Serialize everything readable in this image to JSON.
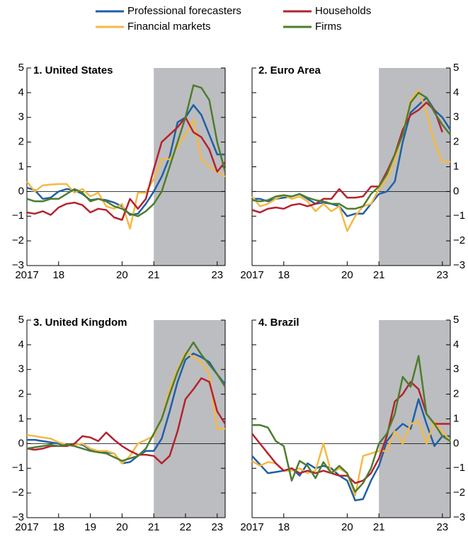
{
  "chart_data": [
    {
      "type": "line",
      "title": "1. United States",
      "xlim": [
        2017,
        2023.25
      ],
      "ylim": [
        -3,
        5
      ],
      "x": [
        2017,
        2017.25,
        2017.5,
        2017.75,
        2018,
        2018.25,
        2018.5,
        2018.75,
        2019,
        2019.25,
        2019.5,
        2019.75,
        2020,
        2020.25,
        2020.5,
        2020.75,
        2021,
        2021.25,
        2021.5,
        2021.75,
        2022,
        2022.25,
        2022.5,
        2022.75,
        2023,
        2023.25
      ],
      "xticks": [
        2017,
        {
          "value": 2018,
          "label": "18"
        },
        {
          "value": 2020,
          "label": "20"
        },
        {
          "value": 2021,
          "label": "21"
        },
        {
          "value": 2023,
          "label": "23"
        }
      ],
      "yticks": [
        {
          "value": -3,
          "label": "−3"
        },
        {
          "value": -2,
          "label": "−2"
        },
        {
          "value": -1,
          "label": "−1"
        },
        0,
        1,
        2,
        3,
        4,
        5
      ],
      "shaded_from": 2021,
      "label_side": "left",
      "series": [
        {
          "name": "Professional forecasters",
          "color": "#1f5fa8",
          "values": [
            0.15,
            0.05,
            -0.3,
            -0.25,
            0.0,
            0.1,
            0.05,
            -0.1,
            -0.35,
            -0.3,
            -0.35,
            -0.45,
            -0.6,
            -0.95,
            -0.9,
            -0.5,
            0.0,
            0.6,
            1.4,
            2.8,
            3.0,
            3.5,
            3.1,
            2.3,
            1.5,
            1.5
          ]
        },
        {
          "name": "Financial markets",
          "color": "#f5b942",
          "values": [
            0.4,
            0.0,
            0.25,
            0.28,
            0.3,
            0.3,
            -0.05,
            0.1,
            -0.2,
            -0.05,
            -0.6,
            -0.7,
            -0.5,
            -1.5,
            -0.05,
            -0.05,
            0.5,
            1.3,
            1.3,
            1.8,
            2.3,
            2.9,
            1.3,
            1.0,
            0.8,
            0.6
          ]
        },
        {
          "name": "Households",
          "color": "#b5222f",
          "values": [
            -0.85,
            -0.9,
            -0.8,
            -0.95,
            -0.65,
            -0.5,
            -0.45,
            -0.55,
            -0.85,
            -0.7,
            -0.75,
            -1.05,
            -1.15,
            -0.3,
            -0.7,
            -0.3,
            0.9,
            2.0,
            2.3,
            2.6,
            3.0,
            2.4,
            2.2,
            1.7,
            0.8,
            1.2
          ]
        },
        {
          "name": "Firms",
          "color": "#4c7d2e",
          "values": [
            -0.3,
            -0.4,
            -0.4,
            -0.3,
            -0.3,
            -0.1,
            0.1,
            -0.05,
            -0.4,
            -0.3,
            -0.4,
            -0.6,
            -0.7,
            -0.9,
            -1.0,
            -0.8,
            -0.5,
            0.0,
            1.0,
            2.0,
            3.0,
            4.3,
            4.2,
            3.7,
            2.0,
            0.8
          ]
        }
      ]
    },
    {
      "type": "line",
      "title": "2. Euro Area",
      "xlim": [
        2017,
        2023.25
      ],
      "ylim": [
        -3,
        5
      ],
      "x": [
        2017,
        2017.25,
        2017.5,
        2017.75,
        2018,
        2018.25,
        2018.5,
        2018.75,
        2019,
        2019.25,
        2019.5,
        2019.75,
        2020,
        2020.25,
        2020.5,
        2020.75,
        2021,
        2021.25,
        2021.5,
        2021.75,
        2022,
        2022.25,
        2022.5,
        2022.75,
        2023,
        2023.25
      ],
      "xticks": [
        2017,
        {
          "value": 2018,
          "label": "18"
        },
        {
          "value": 2020,
          "label": "20"
        },
        {
          "value": 2021,
          "label": "21"
        },
        {
          "value": 2023,
          "label": "23"
        }
      ],
      "yticks": [
        {
          "value": -3,
          "label": "−3"
        },
        {
          "value": -2,
          "label": "−2"
        },
        {
          "value": -1,
          "label": "−1"
        },
        0,
        1,
        2,
        3,
        4,
        5
      ],
      "shaded_from": 2021,
      "label_side": "right",
      "series": [
        {
          "color": "#1f5fa8",
          "values": [
            -0.3,
            -0.3,
            -0.4,
            -0.3,
            -0.25,
            -0.2,
            -0.1,
            -0.3,
            -0.5,
            -0.45,
            -0.5,
            -0.6,
            -1.0,
            -0.9,
            -0.9,
            -0.5,
            -0.1,
            0.0,
            0.4,
            2.0,
            3.2,
            3.5,
            3.8,
            3.3,
            3.0,
            2.5
          ]
        },
        {
          "color": "#f5b942",
          "values": [
            -0.2,
            -0.6,
            -0.5,
            -0.3,
            -0.15,
            -0.3,
            -0.2,
            -0.4,
            -0.8,
            -0.5,
            -0.8,
            -0.6,
            -1.6,
            -1.0,
            -0.6,
            -0.5,
            0.1,
            0.5,
            1.2,
            2.4,
            3.7,
            4.1,
            3.2,
            2.0,
            1.2,
            1.2
          ]
        },
        {
          "color": "#b5222f",
          "values": [
            -0.75,
            -0.85,
            -0.7,
            -0.65,
            -0.7,
            -0.55,
            -0.5,
            -0.6,
            -0.5,
            -0.3,
            -0.3,
            0.1,
            -0.25,
            -0.25,
            -0.2,
            0.2,
            0.2,
            0.8,
            1.5,
            2.5,
            3.1,
            3.3,
            3.6,
            3.3,
            2.4,
            null
          ]
        },
        {
          "color": "#4c7d2e",
          "values": [
            -0.35,
            -0.4,
            -0.35,
            -0.2,
            -0.15,
            -0.2,
            -0.1,
            -0.25,
            -0.35,
            -0.4,
            -0.5,
            -0.5,
            -0.7,
            -0.7,
            -0.6,
            -0.1,
            0.2,
            0.7,
            1.5,
            2.3,
            3.6,
            4.0,
            3.8,
            3.2,
            2.7,
            2.3
          ]
        }
      ]
    },
    {
      "type": "line",
      "title": "3. United Kingdom",
      "xlim": [
        2017,
        2023.25
      ],
      "ylim": [
        -3,
        5
      ],
      "x": [
        2017,
        2017.25,
        2017.5,
        2017.75,
        2018,
        2018.25,
        2018.5,
        2018.75,
        2019,
        2019.25,
        2019.5,
        2019.75,
        2020,
        2020.25,
        2020.5,
        2020.75,
        2021,
        2021.25,
        2021.5,
        2021.75,
        2022,
        2022.25,
        2022.5,
        2022.75,
        2023,
        2023.25
      ],
      "xticks": [
        2017,
        {
          "value": 2018,
          "label": "18"
        },
        {
          "value": 2019,
          "label": "19"
        },
        {
          "value": 2020,
          "label": "20"
        },
        {
          "value": 2021,
          "label": "21"
        },
        {
          "value": 2022,
          "label": "22"
        },
        {
          "value": 2023,
          "label": "23"
        }
      ],
      "yticks": [
        {
          "value": -3,
          "label": "−3"
        },
        {
          "value": -2,
          "label": "−2"
        },
        {
          "value": -1,
          "label": "−1"
        },
        0,
        1,
        2,
        3,
        4,
        5
      ],
      "shaded_from": 2021,
      "label_side": "left",
      "series": [
        {
          "color": "#1f5fa8",
          "values": [
            0.15,
            0.15,
            0.1,
            0.05,
            0.0,
            -0.1,
            0.0,
            -0.05,
            -0.25,
            -0.35,
            -0.35,
            -0.4,
            -0.8,
            -0.75,
            -0.5,
            -0.3,
            -0.3,
            0.2,
            1.3,
            2.5,
            3.4,
            3.65,
            3.5,
            3.3,
            2.8,
            2.4
          ]
        },
        {
          "color": "#f5b942",
          "values": [
            0.35,
            0.3,
            0.25,
            0.2,
            0.05,
            -0.05,
            -0.05,
            0.0,
            -0.2,
            -0.3,
            -0.3,
            -0.4,
            -0.8,
            -0.5,
            0.0,
            0.15,
            0.3,
            1.0,
            2.2,
            3.0,
            3.7,
            3.5,
            3.3,
            2.8,
            0.6,
            0.6
          ]
        },
        {
          "color": "#b5222f",
          "values": [
            -0.2,
            -0.25,
            -0.2,
            -0.1,
            -0.1,
            -0.1,
            0.0,
            0.3,
            0.25,
            0.1,
            0.45,
            0.15,
            -0.1,
            -0.3,
            -0.45,
            -0.45,
            -0.5,
            -0.8,
            -0.5,
            0.5,
            1.8,
            2.2,
            2.65,
            2.5,
            1.3,
            0.8
          ]
        },
        {
          "color": "#4c7d2e",
          "values": [
            -0.2,
            -0.15,
            -0.1,
            -0.05,
            -0.1,
            -0.05,
            -0.1,
            -0.2,
            -0.3,
            -0.35,
            -0.4,
            -0.55,
            -0.7,
            -0.6,
            -0.5,
            -0.2,
            0.4,
            1.0,
            2.0,
            2.9,
            3.6,
            4.1,
            3.6,
            3.2,
            2.8,
            2.3
          ]
        }
      ]
    },
    {
      "type": "line",
      "title": "4. Brazil",
      "xlim": [
        2017,
        2023.25
      ],
      "ylim": [
        -3,
        5
      ],
      "x": [
        2017,
        2017.25,
        2017.5,
        2017.75,
        2018,
        2018.25,
        2018.5,
        2018.75,
        2019,
        2019.25,
        2019.5,
        2019.75,
        2020,
        2020.25,
        2020.5,
        2020.75,
        2021,
        2021.25,
        2021.5,
        2021.75,
        2022,
        2022.25,
        2022.5,
        2022.75,
        2023,
        2023.25
      ],
      "xticks": [
        2017,
        {
          "value": 2018,
          "label": "18"
        },
        {
          "value": 2020,
          "label": "20"
        },
        {
          "value": 2021,
          "label": "21"
        },
        {
          "value": 2023,
          "label": "23"
        }
      ],
      "yticks": [
        {
          "value": -3,
          "label": "−3"
        },
        {
          "value": -2,
          "label": "−2"
        },
        {
          "value": -1,
          "label": "−1"
        },
        0,
        1,
        2,
        3,
        4,
        5
      ],
      "shaded_from": 2021,
      "label_side": "right",
      "series": [
        {
          "color": "#1f5fa8",
          "values": [
            -0.5,
            -0.85,
            -1.2,
            -1.15,
            -1.1,
            -1.0,
            -1.3,
            -0.8,
            -1.0,
            -0.9,
            -1.0,
            -1.3,
            -1.5,
            -2.3,
            -2.25,
            -1.5,
            -0.9,
            0.1,
            0.5,
            0.8,
            0.6,
            1.8,
            0.8,
            -0.1,
            0.3,
            0.3
          ]
        },
        {
          "color": "#f5b942",
          "values": [
            -0.7,
            -0.9,
            -0.75,
            -0.8,
            -1.1,
            -1.1,
            -1.0,
            -1.2,
            -1.1,
            0.0,
            -1.2,
            -1.0,
            -1.2,
            -2.1,
            -0.5,
            -0.4,
            -0.3,
            -0.3,
            0.5,
            0.0,
            0.8,
            0.9,
            0.0,
            0.9,
            0.5,
            0.1
          ]
        },
        {
          "color": "#b5222f",
          "values": [
            0.4,
            0.0,
            -0.4,
            -0.8,
            -1.1,
            -1.0,
            -1.2,
            -1.1,
            -1.2,
            -1.1,
            -1.2,
            -1.3,
            -1.3,
            -1.6,
            -1.5,
            -1.2,
            -0.6,
            0.3,
            1.7,
            2.0,
            2.5,
            2.2,
            1.2,
            0.8,
            0.8,
            0.8
          ]
        },
        {
          "color": "#4c7d2e",
          "values": [
            0.75,
            0.75,
            0.65,
            0.1,
            -0.1,
            -1.5,
            -0.7,
            -0.9,
            -1.4,
            -0.75,
            -1.2,
            -0.9,
            -1.2,
            -1.95,
            -1.6,
            -1.0,
            0.0,
            0.4,
            1.2,
            2.7,
            2.3,
            3.55,
            1.2,
            0.8,
            0.3,
            0.1
          ]
        }
      ]
    }
  ]
}
